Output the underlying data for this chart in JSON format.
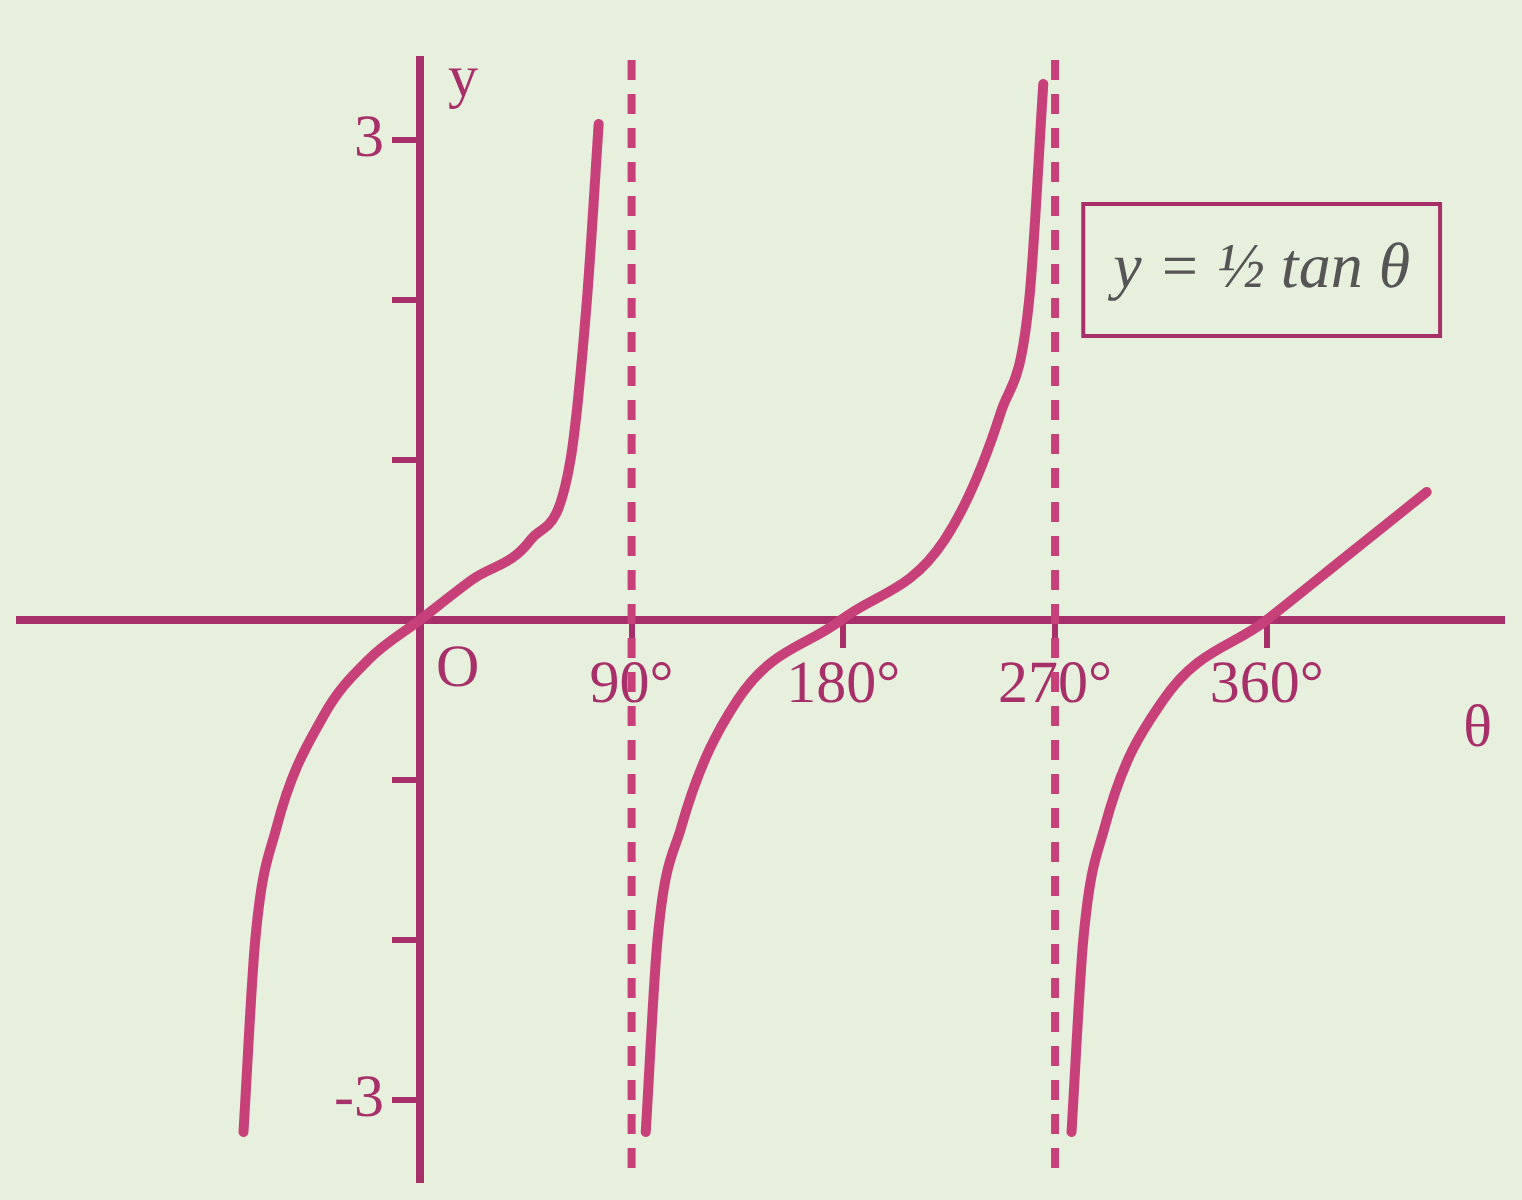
{
  "chart_data": {
    "type": "line",
    "xlabel": "θ",
    "ylabel": "y",
    "xlim": [
      -170,
      460
    ],
    "ylim": [
      -3.5,
      3.5
    ],
    "xticks": [
      {
        "value": 90,
        "label": "90°"
      },
      {
        "value": 180,
        "label": "180°"
      },
      {
        "value": 270,
        "label": "270°"
      },
      {
        "value": 360,
        "label": "360°"
      }
    ],
    "yticks": [
      {
        "value": -3,
        "label": "-3"
      },
      {
        "value": -2,
        "label": null
      },
      {
        "value": -1,
        "label": null
      },
      {
        "value": 1,
        "label": null
      },
      {
        "value": 2,
        "label": null
      },
      {
        "value": 3,
        "label": "3"
      }
    ],
    "series": [
      {
        "color": "#c8407a",
        "x": [
          -75,
          -70,
          -61,
          -41,
          -22,
          0,
          22,
          47,
          64,
          71,
          76
        ],
        "values": [
          -3.2,
          -2.0,
          -1.3,
          -0.6,
          -0.25,
          0,
          0.25,
          0.5,
          1.0,
          2.0,
          3.1
        ]
      },
      {
        "color": "#c8407a",
        "x": [
          96,
          101,
          111,
          135,
          179,
          223,
          247,
          259,
          265
        ],
        "values": [
          -3.2,
          -2.0,
          -1.3,
          -0.5,
          0,
          0.5,
          1.3,
          2.0,
          3.35
        ]
      },
      {
        "color": "#c8407a",
        "x": [
          277,
          282,
          291,
          316,
          360,
          394,
          428
        ],
        "values": [
          -3.2,
          -2.0,
          -1.3,
          -0.5,
          0,
          0.4,
          0.8
        ]
      }
    ],
    "ref_lines": [
      {
        "axis": "x",
        "value": 90,
        "color": "#c8407a",
        "line_style": "dashed"
      },
      {
        "axis": "x",
        "value": 270,
        "color": "#c8407a",
        "line_style": "dashed"
      }
    ],
    "annotations": [
      {
        "text": "O",
        "x": 0,
        "y": 0
      },
      "y = ½ tan θ"
    ],
    "grid": false,
    "legend": false,
    "marker": "none",
    "line_style": "solid"
  }
}
